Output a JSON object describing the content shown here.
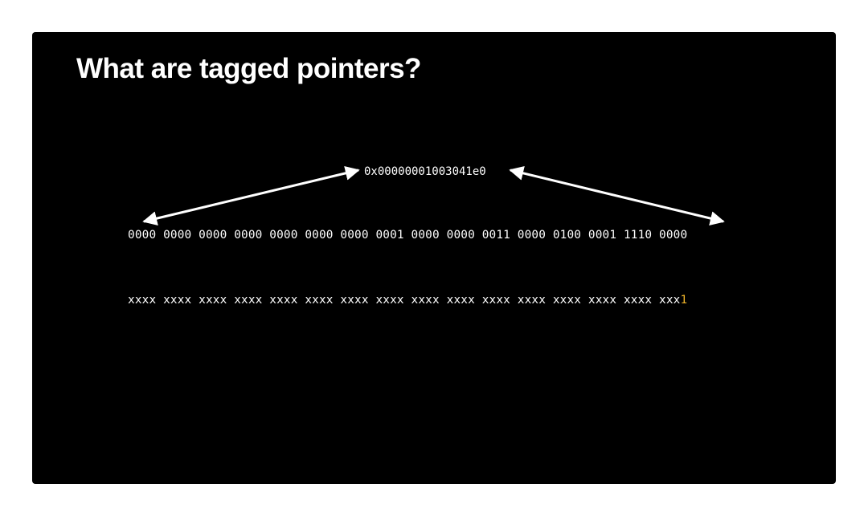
{
  "slide": {
    "title": "What are tagged pointers?",
    "pointer_hex": "0x00000001003041e0",
    "pointer_binary": "0000 0000 0000 0000 0000 0000 0000 0001 0000 0000 0011 0000 0100 0001 1110 0000",
    "tag_pattern_prefix": "xxxx xxxx xxxx xxxx xxxx xxxx xxxx xxxx xxxx xxxx xxxx xxxx xxxx xxxx xxxx xxx",
    "tag_bit": "1"
  },
  "colors": {
    "background": "#000000",
    "text": "#ffffff",
    "tag_bit_highlight": "#f0b429",
    "page": "#ffffff"
  }
}
